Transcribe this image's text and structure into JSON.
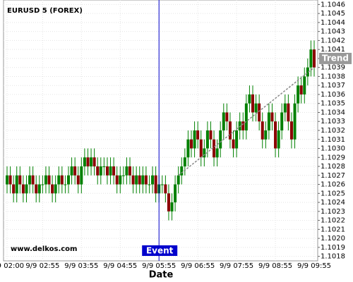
{
  "chart_data": {
    "type": "candlestick",
    "title": "EURUSD 5 (FOREX)",
    "x_label": "Date",
    "watermark": "www.delkos.com",
    "categories": [
      "9/9 02:00",
      null,
      null,
      null,
      null,
      null,
      null,
      null,
      null,
      null,
      null,
      "9/9 02:55",
      null,
      null,
      null,
      null,
      null,
      null,
      null,
      null,
      null,
      null,
      null,
      "9/9 03:55",
      null,
      null,
      null,
      null,
      null,
      null,
      null,
      null,
      null,
      null,
      null,
      "9/9 04:55",
      null,
      null,
      null,
      null,
      null,
      null,
      null,
      null,
      null,
      null,
      null,
      "9/9 05:55",
      null,
      null,
      null,
      null,
      null,
      null,
      null,
      null,
      null,
      null,
      null,
      "9/9 06:55",
      null,
      null,
      null,
      null,
      null,
      null,
      null,
      null,
      null,
      null,
      null,
      "9/9 07:55",
      null,
      null,
      null,
      null,
      null,
      null,
      null,
      null,
      null,
      null,
      null,
      "9/9 08:55",
      null,
      null,
      null,
      null,
      null,
      null,
      null,
      null,
      null,
      null,
      null,
      "9/9 09:55"
    ],
    "open": [
      1.1026,
      1.1027,
      1.1026,
      1.1025,
      1.1027,
      1.1026,
      1.1025,
      1.1026,
      1.1027,
      1.1026,
      1.1025,
      1.1026,
      1.1026,
      1.1027,
      1.1026,
      1.1025,
      1.1026,
      1.1027,
      1.1026,
      1.1026,
      1.1027,
      1.1028,
      1.1027,
      1.1026,
      1.1028,
      1.1029,
      1.1028,
      1.1029,
      1.1028,
      1.1027,
      1.1028,
      1.1028,
      1.1027,
      1.1028,
      1.1027,
      1.1026,
      1.1027,
      1.1027,
      1.1028,
      1.1027,
      1.1026,
      1.1027,
      1.1026,
      1.1027,
      1.1026,
      1.1026,
      1.1027,
      1.1025,
      1.1026,
      1.1026,
      1.1025,
      1.1023,
      1.1024,
      1.1026,
      1.1027,
      1.1028,
      1.1029,
      1.1031,
      1.103,
      1.1032,
      1.1031,
      1.1029,
      1.103,
      1.1032,
      1.1031,
      1.1029,
      1.103,
      1.1032,
      1.1034,
      1.1033,
      1.1031,
      1.103,
      1.1032,
      1.1033,
      1.1032,
      1.1035,
      1.1036,
      1.1034,
      1.1035,
      1.1033,
      1.1031,
      1.1032,
      1.1034,
      1.1033,
      1.103,
      1.1032,
      1.1034,
      1.1035,
      1.1033,
      1.1031,
      1.1035,
      1.1037,
      1.1036,
      1.1038,
      1.1039,
      1.1041
    ],
    "high": [
      1.1028,
      1.1028,
      1.1027,
      1.1028,
      1.1028,
      1.1027,
      1.1027,
      1.1028,
      1.1028,
      1.1027,
      1.1027,
      1.1027,
      1.1028,
      1.1028,
      1.1027,
      1.1027,
      1.1028,
      1.1028,
      1.1027,
      1.1028,
      1.1029,
      1.1029,
      1.1028,
      1.1029,
      1.103,
      1.103,
      1.103,
      1.103,
      1.1029,
      1.1029,
      1.1029,
      1.1029,
      1.1029,
      1.1029,
      1.1028,
      1.1028,
      1.1028,
      1.1029,
      1.1029,
      1.1028,
      1.1028,
      1.1028,
      1.1028,
      1.1028,
      1.1027,
      1.1028,
      1.1028,
      1.1027,
      1.1027,
      1.1027,
      1.1026,
      1.1025,
      1.1027,
      1.1028,
      1.1029,
      1.103,
      1.1032,
      1.1032,
      1.1033,
      1.1033,
      1.1032,
      1.1031,
      1.1033,
      1.1033,
      1.1032,
      1.1031,
      1.1033,
      1.1035,
      1.1035,
      1.1034,
      1.1032,
      1.1033,
      1.1034,
      1.1034,
      1.1036,
      1.1037,
      1.1037,
      1.1036,
      1.1036,
      1.1034,
      1.1033,
      1.1035,
      1.1035,
      1.1034,
      1.1033,
      1.1035,
      1.1036,
      1.1036,
      1.1034,
      1.1036,
      1.1038,
      1.1038,
      1.1039,
      1.104,
      1.1042,
      1.1042
    ],
    "low": [
      1.1025,
      1.1025,
      1.1024,
      1.1024,
      1.1025,
      1.1024,
      1.1024,
      1.1025,
      1.1025,
      1.1024,
      1.1024,
      1.1025,
      1.1025,
      1.1025,
      1.1024,
      1.1024,
      1.1025,
      1.1025,
      1.1025,
      1.1025,
      1.1026,
      1.1026,
      1.1025,
      1.1025,
      1.1027,
      1.1027,
      1.1027,
      1.1027,
      1.1026,
      1.1026,
      1.1027,
      1.1026,
      1.1026,
      1.1026,
      1.1025,
      1.1025,
      1.1026,
      1.1026,
      1.1026,
      1.1025,
      1.1025,
      1.1025,
      1.1025,
      1.1025,
      1.1025,
      1.1025,
      1.1024,
      1.1024,
      1.1025,
      1.1024,
      1.1022,
      1.1022,
      1.1023,
      1.1025,
      1.1026,
      1.1027,
      1.1028,
      1.1029,
      1.1029,
      1.103,
      1.1028,
      1.1028,
      1.1029,
      1.103,
      1.1028,
      1.1028,
      1.1029,
      1.1031,
      1.1032,
      1.103,
      1.1029,
      1.1029,
      1.1031,
      1.1031,
      1.1031,
      1.1034,
      1.1033,
      1.1033,
      1.1032,
      1.103,
      1.103,
      1.1031,
      1.1032,
      1.1029,
      1.1029,
      1.1031,
      1.1033,
      1.1032,
      1.103,
      1.103,
      1.1034,
      1.1035,
      1.1035,
      1.1037,
      1.1038,
      1.1038
    ],
    "close": [
      1.1027,
      1.1026,
      1.1025,
      1.1027,
      1.1026,
      1.1025,
      1.1026,
      1.1027,
      1.1026,
      1.1025,
      1.1026,
      1.1026,
      1.1027,
      1.1026,
      1.1025,
      1.1026,
      1.1027,
      1.1026,
      1.1026,
      1.1027,
      1.1028,
      1.1027,
      1.1026,
      1.1028,
      1.1029,
      1.1028,
      1.1029,
      1.1028,
      1.1027,
      1.1028,
      1.1028,
      1.1027,
      1.1028,
      1.1027,
      1.1026,
      1.1027,
      1.1027,
      1.1028,
      1.1027,
      1.1026,
      1.1027,
      1.1026,
      1.1027,
      1.1026,
      1.1026,
      1.1027,
      1.1025,
      1.1026,
      1.1026,
      1.1025,
      1.1023,
      1.1024,
      1.1026,
      1.1027,
      1.1028,
      1.1029,
      1.1031,
      1.103,
      1.1032,
      1.1031,
      1.1029,
      1.103,
      1.1032,
      1.1031,
      1.1029,
      1.103,
      1.1032,
      1.1034,
      1.1033,
      1.1031,
      1.103,
      1.1032,
      1.1033,
      1.1032,
      1.1035,
      1.1036,
      1.1034,
      1.1035,
      1.1033,
      1.1031,
      1.1032,
      1.1034,
      1.1033,
      1.103,
      1.1032,
      1.1034,
      1.1035,
      1.1033,
      1.1031,
      1.1035,
      1.1037,
      1.1036,
      1.1038,
      1.1039,
      1.1041,
      1.1039
    ],
    "up_color": "#008000",
    "down_color": "#8b0000",
    "ylim": [
      1.10175,
      1.10465
    ],
    "yticks": [
      {
        "value": 1.1018,
        "label": "1.1018"
      },
      1.1019,
      {
        "value": 1.102,
        "label": "1.1020"
      },
      1.1021,
      1.1022,
      1.1023,
      1.1024,
      1.1025,
      1.1026,
      1.1027,
      1.1028,
      1.1029,
      {
        "value": 1.103,
        "label": "1.1030"
      },
      1.1031,
      1.1032,
      1.1033,
      1.1034,
      1.1035,
      1.1036,
      1.1037,
      1.1038,
      1.1039,
      {
        "value": 1.104,
        "label": "1.1040"
      },
      1.1041,
      1.1042,
      1.1043,
      1.1044,
      1.1045,
      1.1046
    ],
    "grid": true,
    "event": {
      "label": "Event",
      "category": "9/9 05:55",
      "color": "#0000cc"
    },
    "trend": {
      "label": "Trend",
      "from": [
        1.1027,
        1.1039
      ]
    }
  }
}
